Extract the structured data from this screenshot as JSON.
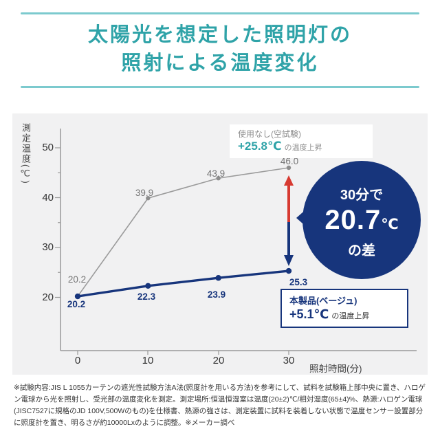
{
  "title": {
    "line1": "太陽光を想定した照明灯の",
    "line2": "照射による温度変化"
  },
  "colors": {
    "accent_teal": "#2fa3a8",
    "rule_teal": "#7ccace",
    "navy": "#17357c",
    "red": "#d73a31",
    "series_gray": "#9b9b9b",
    "chart_bg": "#f1f1f2"
  },
  "chart_data": {
    "type": "line",
    "title": "太陽光を想定した照明灯の照射による温度変化",
    "x": [
      0,
      10,
      20,
      30
    ],
    "xlabel": "照射時間(分)",
    "ylabel": "測定温度(℃)",
    "ylim": [
      15,
      55
    ],
    "yticks": [
      20,
      30,
      40,
      50
    ],
    "grid": false,
    "legend": false,
    "series": [
      {
        "name": "使用なし(空試験)",
        "color": "#9b9b9b",
        "values": [
          20.2,
          39.9,
          43.9,
          46.0
        ]
      },
      {
        "name": "本製品(ベージュ)",
        "color": "#17357c",
        "values": [
          20.2,
          22.3,
          23.9,
          25.3
        ]
      }
    ],
    "annotations": {
      "blank_test": {
        "label": "使用なし(空試験)",
        "delta": "+25.8℃",
        "suffix": "の温度上昇"
      },
      "product": {
        "label": "本製品(ベージュ)",
        "delta": "+5.1℃",
        "suffix": "の温度上昇"
      },
      "badge": {
        "line1": "30分で",
        "value": "20.7",
        "unit": "℃",
        "line3": "の差"
      }
    }
  },
  "labels": {
    "gray_points": [
      "20.2",
      "39.9",
      "43.9",
      "46.0"
    ],
    "blue_points": [
      "20.2",
      "22.3",
      "23.9",
      "25.3"
    ]
  },
  "footnote": "※試験内容:JIS L 1055カーテンの遮光性試験方法A法(照度計を用いる方法)を参考にして、試料を試験箱上部中央に置き、ハロゲン電球から光を照射し、受光部の温度変化を測定。測定場所:恒温恒湿室は温度(20±2)℃/相対湿度(65±4)%、熱源:ハロゲン電球(JISC7527に規格のJD 100V,500Wのもの)を仕様書、熱源の強さは、測定装置に試料を装着しない状態で温度センサー設置部分に照度計を置き、明るさが約10000Lxのように調整。※メーカー調べ"
}
